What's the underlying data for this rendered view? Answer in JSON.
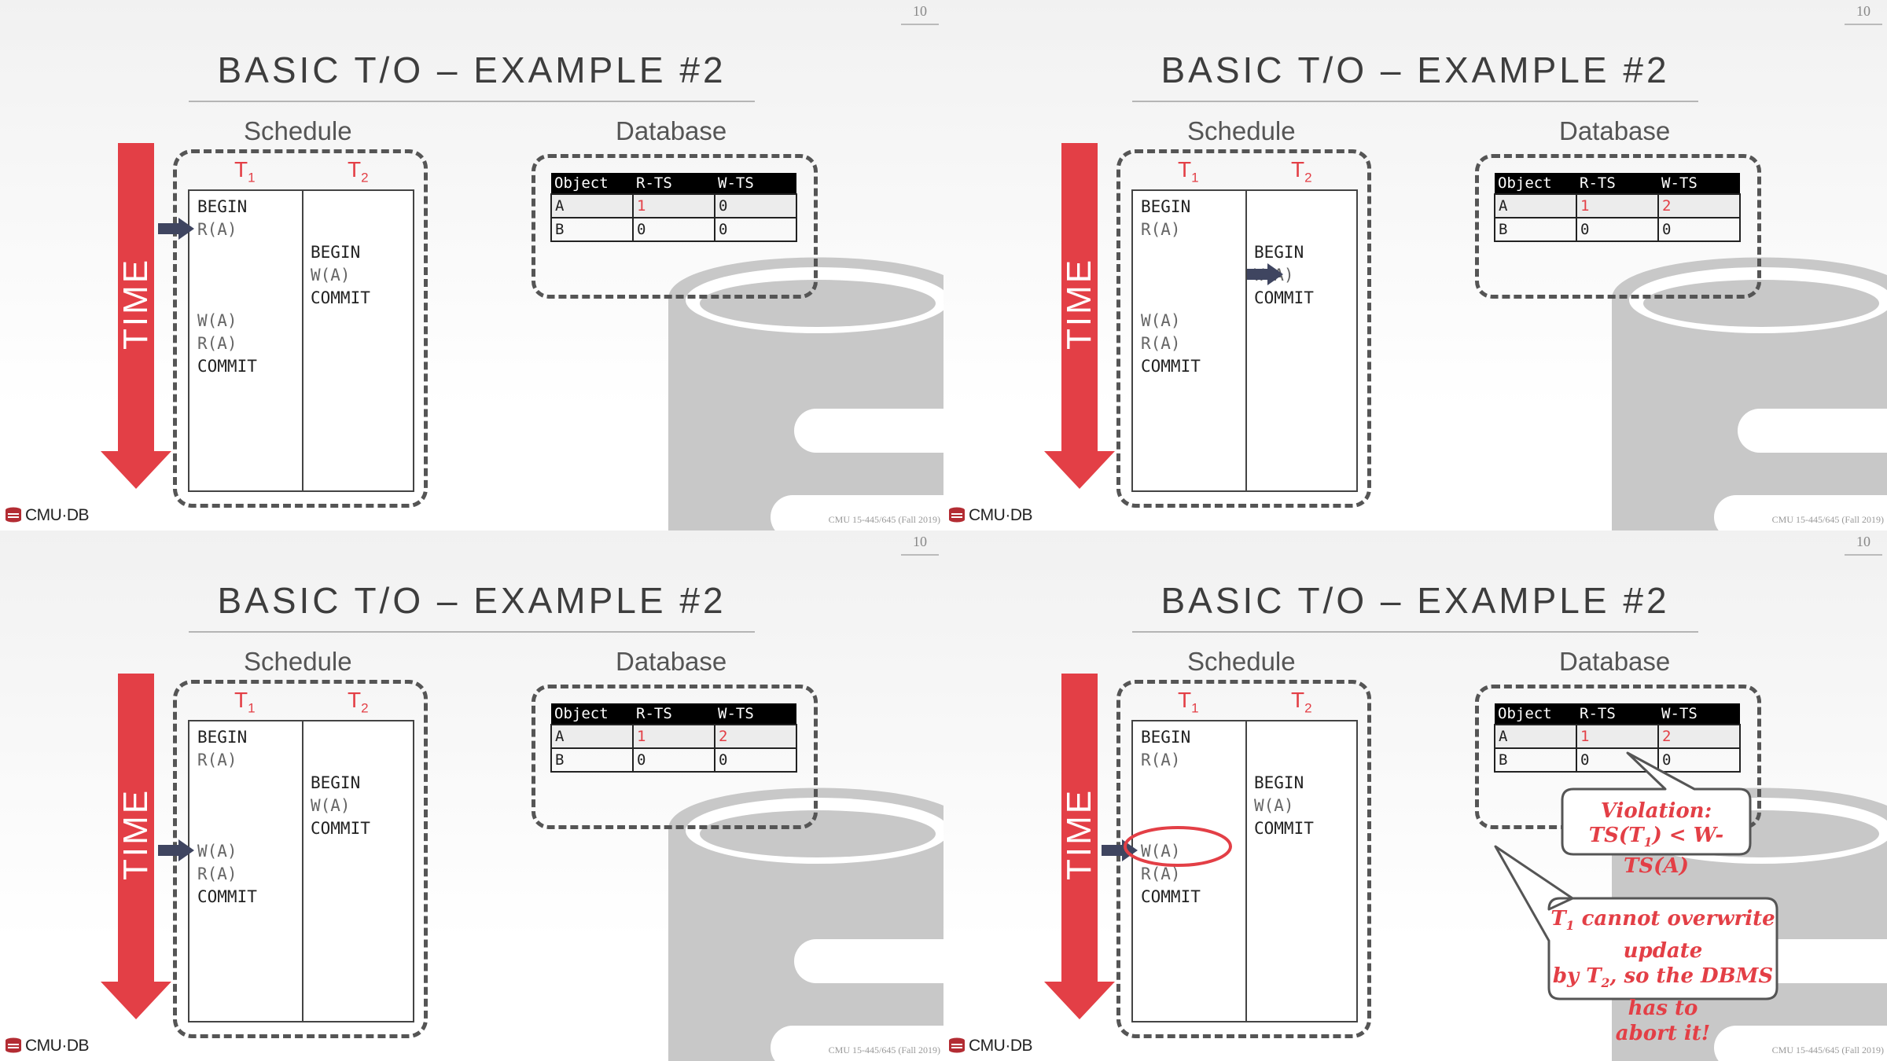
{
  "slides": [
    {
      "number": "10",
      "title": "BASIC T/O – EXAMPLE #2",
      "schedule_label": "Schedule",
      "database_label": "Database",
      "time_label": "TIME",
      "t1": {
        "letter": "T",
        "sub": "1"
      },
      "t2": {
        "letter": "T",
        "sub": "2"
      },
      "t1_ops": [
        "BEGIN",
        "R(A)",
        "W(A)",
        "R(A)",
        "COMMIT"
      ],
      "t2_ops": [
        "BEGIN",
        "W(A)",
        "COMMIT"
      ],
      "db_table": {
        "headers": [
          "Object",
          "R-TS",
          "W-TS"
        ],
        "rows": [
          [
            "A",
            "1",
            "0"
          ],
          [
            "B",
            "0",
            "0"
          ]
        ]
      },
      "logo": "CMU·DB",
      "footer": "CMU 15-445/645 (Fall 2019)"
    },
    {
      "number": "10",
      "title": "BASIC T/O – EXAMPLE #2",
      "schedule_label": "Schedule",
      "database_label": "Database",
      "time_label": "TIME",
      "t1": {
        "letter": "T",
        "sub": "1"
      },
      "t2": {
        "letter": "T",
        "sub": "2"
      },
      "t1_ops": [
        "BEGIN",
        "R(A)",
        "W(A)",
        "R(A)",
        "COMMIT"
      ],
      "t2_ops": [
        "BEGIN",
        "W(A)",
        "COMMIT"
      ],
      "db_table": {
        "headers": [
          "Object",
          "R-TS",
          "W-TS"
        ],
        "rows": [
          [
            "A",
            "1",
            "2"
          ],
          [
            "B",
            "0",
            "0"
          ]
        ]
      },
      "logo": "CMU·DB",
      "footer": "CMU 15-445/645 (Fall 2019)"
    },
    {
      "number": "10",
      "title": "BASIC T/O – EXAMPLE #2",
      "schedule_label": "Schedule",
      "database_label": "Database",
      "time_label": "TIME",
      "t1": {
        "letter": "T",
        "sub": "1"
      },
      "t2": {
        "letter": "T",
        "sub": "2"
      },
      "t1_ops": [
        "BEGIN",
        "R(A)",
        "W(A)",
        "R(A)",
        "COMMIT"
      ],
      "t2_ops": [
        "BEGIN",
        "W(A)",
        "COMMIT"
      ],
      "db_table": {
        "headers": [
          "Object",
          "R-TS",
          "W-TS"
        ],
        "rows": [
          [
            "A",
            "1",
            "2"
          ],
          [
            "B",
            "0",
            "0"
          ]
        ]
      },
      "logo": "CMU·DB",
      "footer": "CMU 15-445/645 (Fall 2019)"
    },
    {
      "number": "10",
      "title": "BASIC T/O – EXAMPLE #2",
      "schedule_label": "Schedule",
      "database_label": "Database",
      "time_label": "TIME",
      "t1": {
        "letter": "T",
        "sub": "1"
      },
      "t2": {
        "letter": "T",
        "sub": "2"
      },
      "t1_ops": [
        "BEGIN",
        "R(A)",
        "W(A)",
        "R(A)",
        "COMMIT"
      ],
      "t2_ops": [
        "BEGIN",
        "W(A)",
        "COMMIT"
      ],
      "db_table": {
        "headers": [
          "Object",
          "R-TS",
          "W-TS"
        ],
        "rows": [
          [
            "A",
            "1",
            "2"
          ],
          [
            "B",
            "0",
            "0"
          ]
        ]
      },
      "violation_callout": {
        "line1": "Violation:",
        "line2_pre": "TS(T",
        "line2_sub": "1",
        "line2_post": ") < W-TS(A)"
      },
      "abort_callout": {
        "line1_pre": "T",
        "line1_sub": "1",
        "line1_post": " cannot overwrite update",
        "line2_pre": "by T",
        "line2_sub": "2",
        "line2_post": ", so the DBMS has to",
        "line3": "abort it!"
      },
      "logo": "CMU·DB",
      "footer": "CMU 15-445/645 (Fall 2019)"
    }
  ],
  "colors": {
    "accent_red": "#e33f46",
    "pointer": "#3f4560",
    "db_gray": "#c8c8c8"
  }
}
